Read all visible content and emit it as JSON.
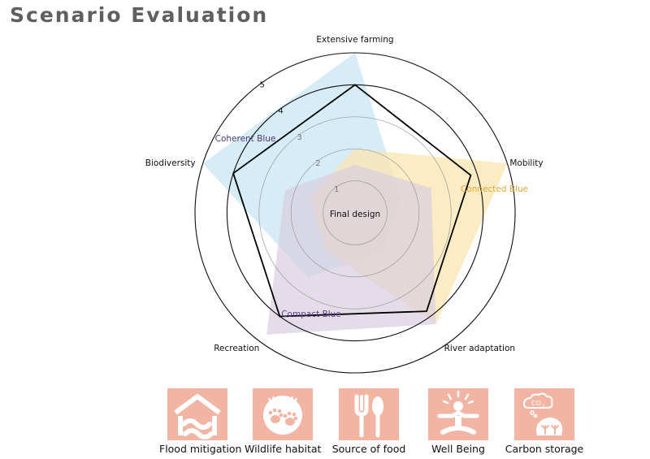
{
  "title": "Scenario Evaluation",
  "chart_data": {
    "type": "radar",
    "axes": [
      "Extensive farming",
      "Mobility",
      "River adaptation",
      "Recreation",
      "Biodiversity"
    ],
    "rlim": [
      0,
      5
    ],
    "ring_labels": [
      "1",
      "2",
      "3",
      "4",
      "5"
    ],
    "series": [
      {
        "name": "Coherent Blue",
        "values": [
          5.0,
          1.5,
          1.5,
          2.5,
          5.0
        ],
        "color": "#cfe9f4"
      },
      {
        "name": "Connected Blue",
        "values": [
          2.0,
          5.0,
          4.3,
          1.5,
          1.5
        ],
        "color": "#fbe6b0"
      },
      {
        "name": "Compact Blue",
        "values": [
          1.5,
          2.5,
          4.3,
          4.7,
          2.3
        ],
        "color": "#d9cfe0"
      },
      {
        "name": "Final design",
        "values": [
          4.0,
          3.8,
          3.8,
          4.0,
          4.0
        ],
        "color": "#000000"
      }
    ]
  },
  "benefits": [
    {
      "label": "Flood mitigation",
      "icon": "flood-mitigation-icon"
    },
    {
      "label": "Wildlife habitat",
      "icon": "wildlife-habitat-icon"
    },
    {
      "label": "Source of food",
      "icon": "source-of-food-icon"
    },
    {
      "label": "Well Being",
      "icon": "well-being-icon"
    },
    {
      "label": "Carbon storage",
      "icon": "carbon-storage-icon"
    }
  ],
  "colors": {
    "tile": "#f2b5a4",
    "title": "#5f5f5f",
    "coherent_label": "#4b3a78",
    "connected_label": "#e0a83a",
    "compact_label": "#5a3f86"
  }
}
